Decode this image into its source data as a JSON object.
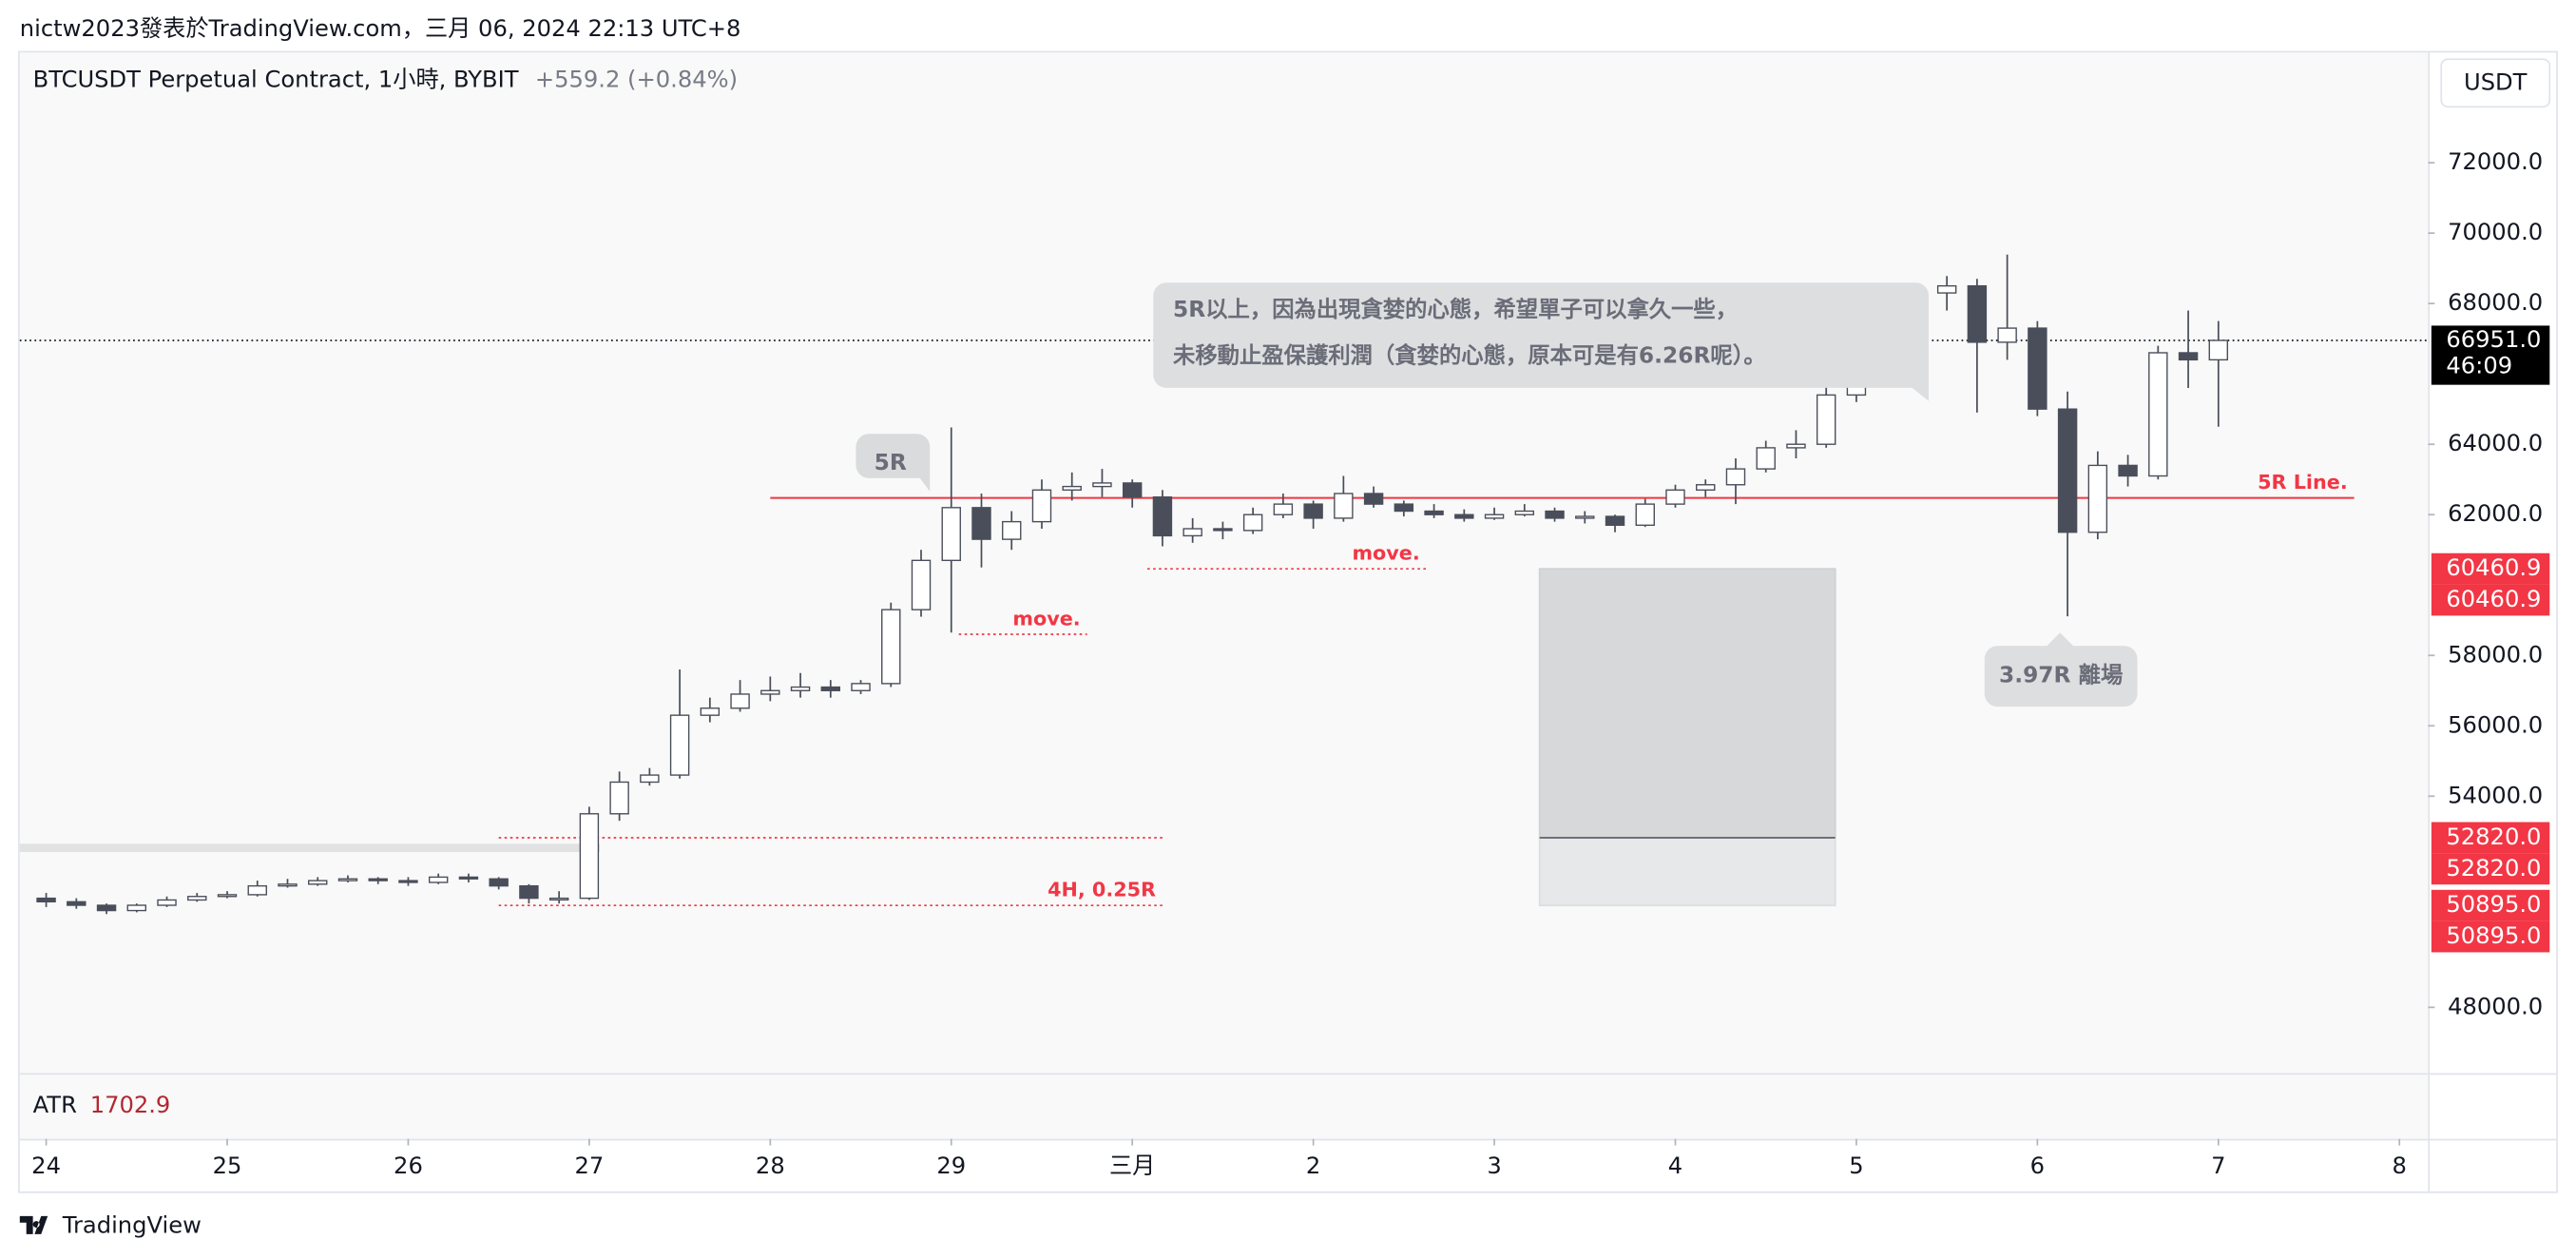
{
  "header": {
    "attribution": "nictw2023發表於TradingView.com，三月 06, 2024 22:13 UTC+8"
  },
  "chart_data": {
    "type": "candlestick",
    "title": "BTCUSDT Perpetual Contract, 1小時, BYBIT",
    "change": "+559.2 (+0.84%)",
    "currency": "USDT",
    "up_color": "#ffffff",
    "down_color": "#4a4e5a",
    "outline_color": "#4a4e5a",
    "x": [
      0,
      4,
      8,
      12,
      16,
      20,
      24,
      28,
      32,
      36,
      40,
      44,
      48,
      52,
      56,
      60,
      64,
      68,
      72,
      76,
      80,
      84,
      88,
      92,
      96,
      100,
      104,
      108,
      112,
      116,
      120,
      124,
      128,
      132,
      136,
      140,
      144,
      148,
      152,
      156,
      160,
      164,
      168,
      172,
      176,
      180,
      184,
      188,
      192,
      196,
      200,
      204,
      208,
      212,
      216,
      220,
      224,
      228,
      232,
      236,
      240,
      244,
      248,
      252,
      256,
      260,
      264,
      268,
      272,
      276,
      280,
      284,
      288
    ],
    "open": [
      51100,
      51000,
      50900,
      50750,
      50900,
      51050,
      51150,
      51200,
      51450,
      51500,
      51600,
      51650,
      51600,
      51550,
      51700,
      51650,
      51450,
      51100,
      51100,
      53500,
      54400,
      54600,
      56300,
      56500,
      56900,
      57000,
      57100,
      57000,
      57200,
      59300,
      60700,
      62200,
      61300,
      61800,
      62700,
      62800,
      62900,
      62500,
      61400,
      61600,
      61550,
      62000,
      62300,
      61900,
      62600,
      62300,
      62100,
      62000,
      61900,
      62000,
      62100,
      61900,
      61950,
      61700,
      62300,
      62700,
      62850,
      63300,
      63900,
      64000,
      65400,
      66300,
      67000,
      68300,
      68500,
      66900,
      67300,
      65000,
      61500,
      63400,
      63100,
      66600,
      66400
    ],
    "high": [
      51250,
      51100,
      50950,
      50950,
      51150,
      51250,
      51300,
      51600,
      51650,
      51700,
      51750,
      51700,
      51700,
      51800,
      51800,
      51700,
      51500,
      51300,
      53700,
      54700,
      54800,
      57600,
      56800,
      57300,
      57400,
      57500,
      57300,
      57300,
      59500,
      61000,
      64480,
      62600,
      62100,
      63000,
      63200,
      63300,
      63000,
      62700,
      61900,
      61800,
      62200,
      62600,
      62400,
      63100,
      62800,
      62400,
      62300,
      62150,
      62200,
      62300,
      62200,
      62100,
      62000,
      62450,
      62850,
      63000,
      63600,
      64100,
      64400,
      65800,
      66600,
      67600,
      68500,
      68780,
      68700,
      69390,
      67500,
      65500,
      63800,
      63700,
      66800,
      67800,
      67500
    ],
    "low": [
      50850,
      50800,
      50650,
      50700,
      50850,
      51000,
      51100,
      51150,
      51400,
      51450,
      51550,
      51500,
      51450,
      51500,
      51550,
      51350,
      50950,
      50950,
      51050,
      53300,
      54300,
      54500,
      56100,
      56400,
      56700,
      56800,
      56800,
      56900,
      57100,
      59100,
      58650,
      60500,
      61000,
      61600,
      62400,
      62500,
      62200,
      61100,
      61200,
      61300,
      61450,
      61900,
      61600,
      61800,
      62200,
      61950,
      61900,
      61800,
      61850,
      61950,
      61800,
      61750,
      61500,
      61650,
      62200,
      62500,
      62300,
      63200,
      63600,
      63900,
      65200,
      66100,
      66900,
      67800,
      64900,
      66400,
      64800,
      59110,
      61300,
      62800,
      63000,
      65600,
      64500
    ],
    "close": [
      51000,
      50900,
      50750,
      50900,
      51050,
      51150,
      51200,
      51450,
      51500,
      51600,
      51650,
      51600,
      51550,
      51700,
      51650,
      51450,
      51100,
      51100,
      53500,
      54400,
      54600,
      56300,
      56500,
      56900,
      57000,
      57100,
      57000,
      57200,
      59300,
      60700,
      62200,
      61300,
      61800,
      62700,
      62800,
      62900,
      62500,
      61400,
      61600,
      61550,
      62000,
      62300,
      61900,
      62600,
      62300,
      62100,
      62000,
      61900,
      62000,
      62100,
      61900,
      61950,
      61700,
      62300,
      62700,
      62850,
      63300,
      63900,
      64000,
      65400,
      66300,
      67000,
      68300,
      68500,
      66900,
      67300,
      65000,
      61500,
      63400,
      63100,
      66600,
      66400,
      66951
    ],
    "xlim": [
      -3.5,
      315.8
    ],
    "xticks": [
      {
        "value": 0,
        "label": "24"
      },
      {
        "value": 24,
        "label": "25"
      },
      {
        "value": 48,
        "label": "26"
      },
      {
        "value": 72,
        "label": "27"
      },
      {
        "value": 96,
        "label": "28"
      },
      {
        "value": 120,
        "label": "29"
      },
      {
        "value": 144,
        "label": "三月"
      },
      {
        "value": 168,
        "label": "2"
      },
      {
        "value": 192,
        "label": "3"
      },
      {
        "value": 216,
        "label": "4"
      },
      {
        "value": 240,
        "label": "5"
      },
      {
        "value": 264,
        "label": "6"
      },
      {
        "value": 288,
        "label": "7"
      },
      {
        "value": 312,
        "label": "8"
      }
    ],
    "ylim": [
      46130,
      75130
    ],
    "yticks": [
      {
        "value": 48000,
        "label": "48000.0"
      },
      {
        "value": 54000,
        "label": "54000.0"
      },
      {
        "value": 56000,
        "label": "56000.0"
      },
      {
        "value": 58000,
        "label": "58000.0"
      },
      {
        "value": 62000,
        "label": "62000.0"
      },
      {
        "value": 64000,
        "label": "64000.0"
      },
      {
        "value": 68000,
        "label": "68000.0"
      },
      {
        "value": 70000,
        "label": "70000.0"
      },
      {
        "value": 72000,
        "label": "72000.0"
      }
    ],
    "last_price": {
      "value": 66951,
      "label": "66951.0"
    },
    "countdown": "46:09",
    "price_tags": [
      {
        "value": 60460.9,
        "label": "60460.9"
      },
      {
        "value": 60460.9,
        "label": "60460.9"
      },
      {
        "value": 52820,
        "label": "52820.0"
      },
      {
        "value": 52820,
        "label": "52820.0"
      },
      {
        "value": 50895,
        "label": "50895.0"
      },
      {
        "value": 50895,
        "label": "50895.0"
      }
    ],
    "lines": [
      {
        "label": "5R Line.",
        "value": 62475,
        "x": [
          96,
          306
        ],
        "style": "solid"
      },
      {
        "label": "move.",
        "value": 58600,
        "x": [
          121,
          138
        ],
        "style": "dotted"
      },
      {
        "label": "move.",
        "value": 60460.9,
        "x": [
          146,
          183
        ],
        "style": "dotted"
      },
      {
        "label": "4H, 0.25R",
        "value": 50895,
        "x": [
          60,
          148
        ],
        "style": "dotted"
      },
      {
        "value": 52820,
        "x": [
          60,
          148
        ],
        "style": "dotted"
      }
    ],
    "range_bar": {
      "value": 52530,
      "x": [
        -3.5,
        73.4
      ]
    },
    "box": {
      "x": [
        198,
        237.2
      ],
      "top": 60460.9,
      "mid": 52820,
      "bottom": 50895
    },
    "annotations": {
      "entry_note": "5R",
      "hold_note": [
        "5R以上，因為出現貪婪的心態，希望單子可以拿久一些，",
        "未移動止盈保護利潤（貪婪的心態，原本可是有6.26R呢）。"
      ],
      "exit_note": "3.97R 離場"
    }
  },
  "indicator": {
    "name": "ATR",
    "value": 1702.9
  },
  "footer": {
    "brand": "TradingView"
  }
}
